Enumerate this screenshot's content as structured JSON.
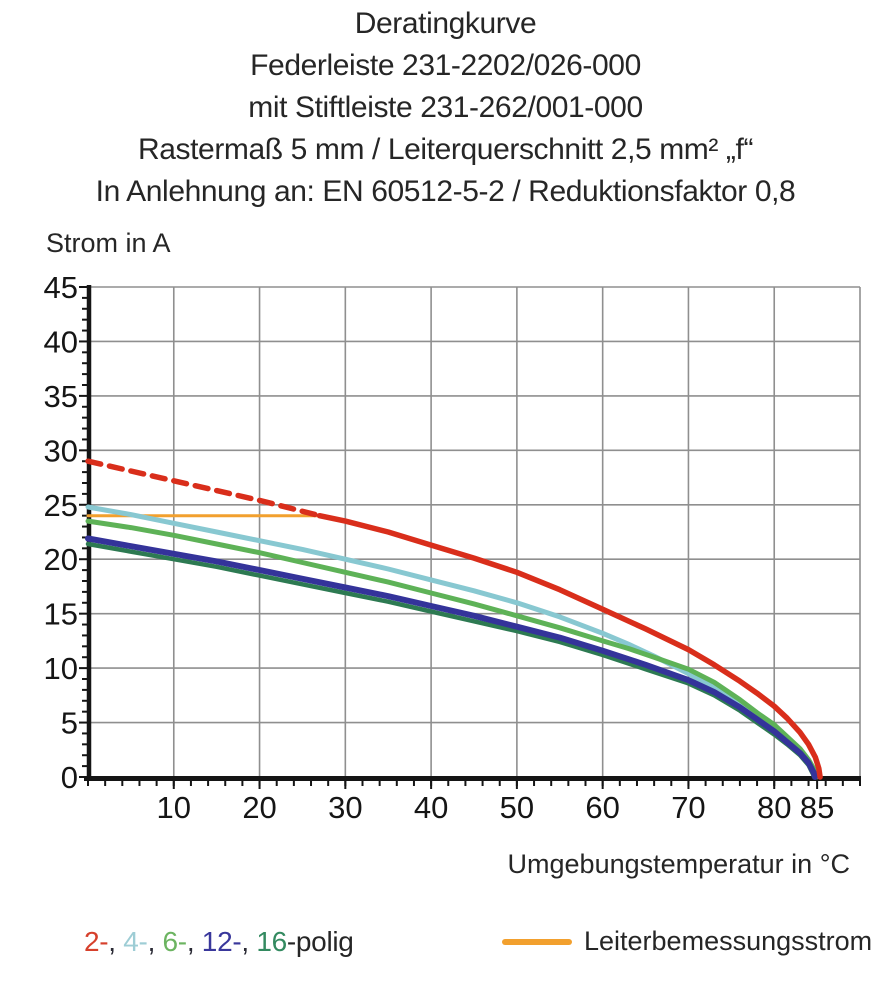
{
  "title": {
    "lines": [
      "Deratingkurve",
      "Federleiste 231-2202/026-000",
      "mit Stiftleiste 231-262/001-000",
      "Rastermaß 5 mm / Leiterquerschnitt 2,5 mm² „f“",
      "In Anlehnung an: EN 60512-5-2 / Reduktionsfaktor 0,8"
    ]
  },
  "axes": {
    "y_label": "Strom in A",
    "x_label": "Umgebungstemperatur in °C"
  },
  "legend": {
    "poles": {
      "items": [
        {
          "label": "2-",
          "color": "#d6402c"
        },
        {
          "label": "4-",
          "color": "#9ecdd5"
        },
        {
          "label": "6-",
          "color": "#6cb461"
        },
        {
          "label": "12-",
          "color": "#39379b"
        },
        {
          "label": "16",
          "color": "#338a60"
        }
      ],
      "separator": ", ",
      "separator_color": "#2a2a35",
      "suffix": "-polig",
      "suffix_color": "#262626"
    },
    "reference": {
      "label": "Leiterbemessungsstrom",
      "color": "#f2a02e"
    }
  },
  "chart_data": {
    "type": "line",
    "title": "Deratingkurve",
    "xlabel": "Umgebungstemperatur in °C",
    "ylabel": "Strom in A",
    "xlim": [
      0,
      90
    ],
    "ylim": [
      0,
      45
    ],
    "grid": true,
    "grid_color": "#8f8f8f",
    "axis_color": "#151515",
    "x_tick_labels": [
      10,
      20,
      30,
      40,
      50,
      60,
      70,
      80,
      85
    ],
    "y_tick_labels": [
      0,
      5,
      10,
      15,
      20,
      25,
      30,
      35,
      40,
      45
    ],
    "x_gridlines": [
      10,
      20,
      30,
      40,
      50,
      60,
      70,
      80,
      90
    ],
    "y_gridlines": [
      5,
      10,
      15,
      20,
      25,
      30,
      35,
      40,
      45
    ],
    "x_minor_tick_step": 2,
    "y_minor_tick_step": 1,
    "legend_position": "bottom",
    "series": [
      {
        "name": "Leiterbemessungsstrom",
        "color": "#f2a02e",
        "width": 3,
        "segments": [
          {
            "style": "solid",
            "points": [
              [
                0,
                24
              ],
              [
                27.5,
                24
              ]
            ]
          }
        ]
      },
      {
        "name": "4-polig",
        "color": "#88c8d1",
        "width": 5,
        "segments": [
          {
            "style": "solid",
            "points": [
              [
                0,
                24.8
              ],
              [
                5,
                24.1
              ],
              [
                10,
                23.3
              ],
              [
                15,
                22.5
              ],
              [
                20,
                21.7
              ],
              [
                25,
                20.9
              ],
              [
                30,
                20.0
              ],
              [
                35,
                19.1
              ],
              [
                40,
                18.1
              ],
              [
                45,
                17.1
              ],
              [
                50,
                16.0
              ],
              [
                55,
                14.7
              ],
              [
                60,
                13.2
              ],
              [
                63,
                12.2
              ],
              [
                66,
                11.1
              ],
              [
                70,
                9.5
              ],
              [
                73,
                8.2
              ],
              [
                76,
                6.7
              ],
              [
                78,
                5.6
              ],
              [
                80,
                4.5
              ],
              [
                81.5,
                3.5
              ],
              [
                83,
                2.4
              ],
              [
                84,
                1.5
              ],
              [
                84.7,
                0.5
              ],
              [
                84.85,
                0
              ]
            ]
          }
        ]
      },
      {
        "name": "6-polig",
        "color": "#5eb257",
        "width": 5,
        "segments": [
          {
            "style": "solid",
            "points": [
              [
                0,
                23.5
              ],
              [
                5,
                22.9
              ],
              [
                10,
                22.2
              ],
              [
                15,
                21.4
              ],
              [
                20,
                20.6
              ],
              [
                25,
                19.7
              ],
              [
                30,
                18.8
              ],
              [
                35,
                17.9
              ],
              [
                40,
                16.9
              ],
              [
                45,
                15.9
              ],
              [
                50,
                14.8
              ],
              [
                55,
                13.7
              ],
              [
                60,
                12.5
              ],
              [
                63,
                11.8
              ],
              [
                66,
                11.0
              ],
              [
                70,
                9.9
              ],
              [
                73,
                8.7
              ],
              [
                76,
                7.1
              ],
              [
                78,
                5.9
              ],
              [
                80,
                4.8
              ],
              [
                81.5,
                3.7
              ],
              [
                83,
                2.6
              ],
              [
                84,
                1.6
              ],
              [
                84.8,
                0.5
              ],
              [
                84.95,
                0
              ]
            ]
          }
        ]
      },
      {
        "name": "16-polig",
        "color": "#2d7a52",
        "width": 4.5,
        "segments": [
          {
            "style": "solid",
            "points": [
              [
                0,
                21.4
              ],
              [
                5,
                20.7
              ],
              [
                10,
                20.0
              ],
              [
                15,
                19.3
              ],
              [
                20,
                18.5
              ],
              [
                25,
                17.7
              ],
              [
                30,
                16.9
              ],
              [
                35,
                16.1
              ],
              [
                40,
                15.2
              ],
              [
                45,
                14.3
              ],
              [
                50,
                13.4
              ],
              [
                55,
                12.4
              ],
              [
                60,
                11.2
              ],
              [
                65,
                9.9
              ],
              [
                70,
                8.6
              ],
              [
                73,
                7.5
              ],
              [
                76,
                6.1
              ],
              [
                78,
                5.0
              ],
              [
                80,
                3.9
              ],
              [
                81.5,
                3.0
              ],
              [
                83,
                2.0
              ],
              [
                84,
                1.1
              ],
              [
                84.5,
                0.3
              ],
              [
                84.65,
                0
              ]
            ]
          }
        ]
      },
      {
        "name": "12-polig",
        "color": "#34339a",
        "width": 6,
        "segments": [
          {
            "style": "solid",
            "points": [
              [
                0,
                21.9
              ],
              [
                5,
                21.2
              ],
              [
                10,
                20.5
              ],
              [
                15,
                19.8
              ],
              [
                20,
                19.0
              ],
              [
                25,
                18.2
              ],
              [
                30,
                17.4
              ],
              [
                35,
                16.6
              ],
              [
                40,
                15.7
              ],
              [
                45,
                14.8
              ],
              [
                50,
                13.8
              ],
              [
                55,
                12.8
              ],
              [
                60,
                11.6
              ],
              [
                65,
                10.3
              ],
              [
                70,
                8.9
              ],
              [
                73,
                7.8
              ],
              [
                76,
                6.4
              ],
              [
                78,
                5.3
              ],
              [
                80,
                4.2
              ],
              [
                81.5,
                3.2
              ],
              [
                83,
                2.2
              ],
              [
                84,
                1.3
              ],
              [
                84.6,
                0.4
              ],
              [
                84.75,
                0
              ]
            ]
          }
        ]
      },
      {
        "name": "2-polig",
        "color": "#d92e1b",
        "width": 5.5,
        "segments": [
          {
            "style": "dashed",
            "points": [
              [
                0,
                29
              ],
              [
                5,
                28.1
              ],
              [
                10,
                27.2
              ],
              [
                15,
                26.3
              ],
              [
                20,
                25.4
              ],
              [
                24,
                24.6
              ],
              [
                27,
                24
              ]
            ]
          },
          {
            "style": "solid",
            "points": [
              [
                27,
                24
              ],
              [
                30,
                23.5
              ],
              [
                35,
                22.5
              ],
              [
                40,
                21.3
              ],
              [
                45,
                20.1
              ],
              [
                50,
                18.8
              ],
              [
                55,
                17.2
              ],
              [
                60,
                15.4
              ],
              [
                65,
                13.6
              ],
              [
                70,
                11.7
              ],
              [
                73,
                10.3
              ],
              [
                76,
                8.8
              ],
              [
                78,
                7.7
              ],
              [
                80,
                6.5
              ],
              [
                81.5,
                5.4
              ],
              [
                83,
                4.1
              ],
              [
                84,
                3.0
              ],
              [
                84.8,
                1.8
              ],
              [
                85.2,
                0.8
              ],
              [
                85.35,
                0
              ]
            ]
          }
        ]
      }
    ]
  }
}
